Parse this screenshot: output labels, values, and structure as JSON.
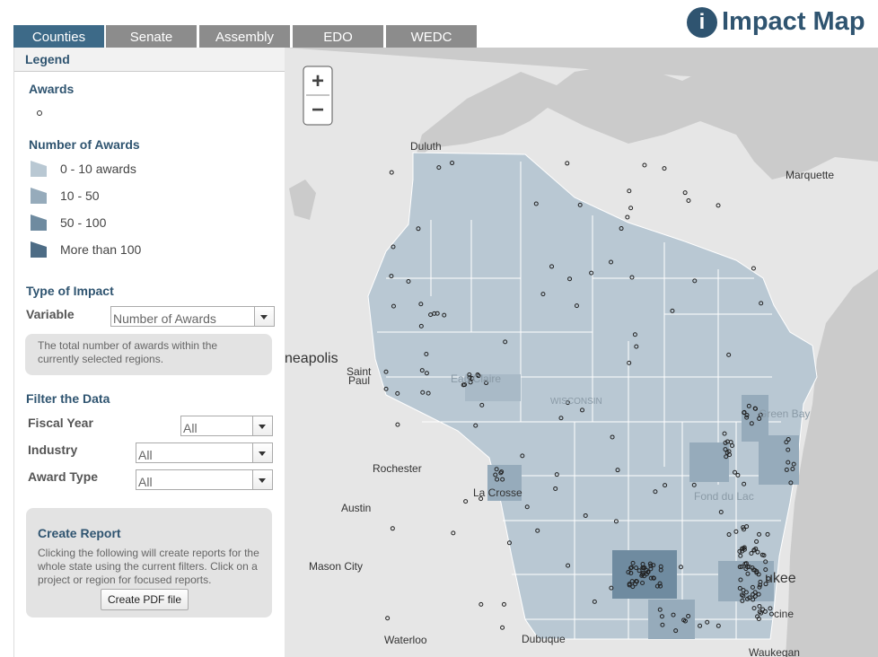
{
  "header": {
    "icon": "i",
    "title": "Impact Map"
  },
  "tabs": [
    "Counties",
    "Senate",
    "Assembly",
    "EDO",
    "WEDC"
  ],
  "legend": {
    "title": "Legend",
    "awards_heading": "Awards",
    "number_heading": "Number of Awards",
    "items": [
      "0 - 10 awards",
      "10 - 50",
      "50 - 100",
      "More than 100"
    ]
  },
  "impact": {
    "heading": "Type of Impact",
    "variable_label": "Variable",
    "variable_value": "Number of Awards",
    "description": "The total number of awards within the currently selected regions."
  },
  "filter": {
    "heading": "Filter the Data",
    "fields": [
      {
        "label": "Fiscal Year",
        "value": "All"
      },
      {
        "label": "Industry",
        "value": "All"
      },
      {
        "label": "Award Type",
        "value": "All"
      }
    ]
  },
  "report": {
    "heading": "Create Report",
    "text": "Clicking the following will create reports for the whole state using the current filters. Click on a project or region for focused reports.",
    "button": "Create PDF file"
  },
  "map": {
    "zoom_in": "+",
    "zoom_out": "−",
    "places": [
      "Duluth",
      "Marquette",
      "neapolis",
      "Saint",
      "Paul",
      "Eau Claire",
      "WISCONSIN",
      "Green Bay",
      "Rochester",
      "La Crosse",
      "Fond du Lac",
      "Austin",
      "Mason City",
      "ukee",
      "cine",
      "Waterloo",
      "Dubuque",
      "Waukegan"
    ]
  }
}
